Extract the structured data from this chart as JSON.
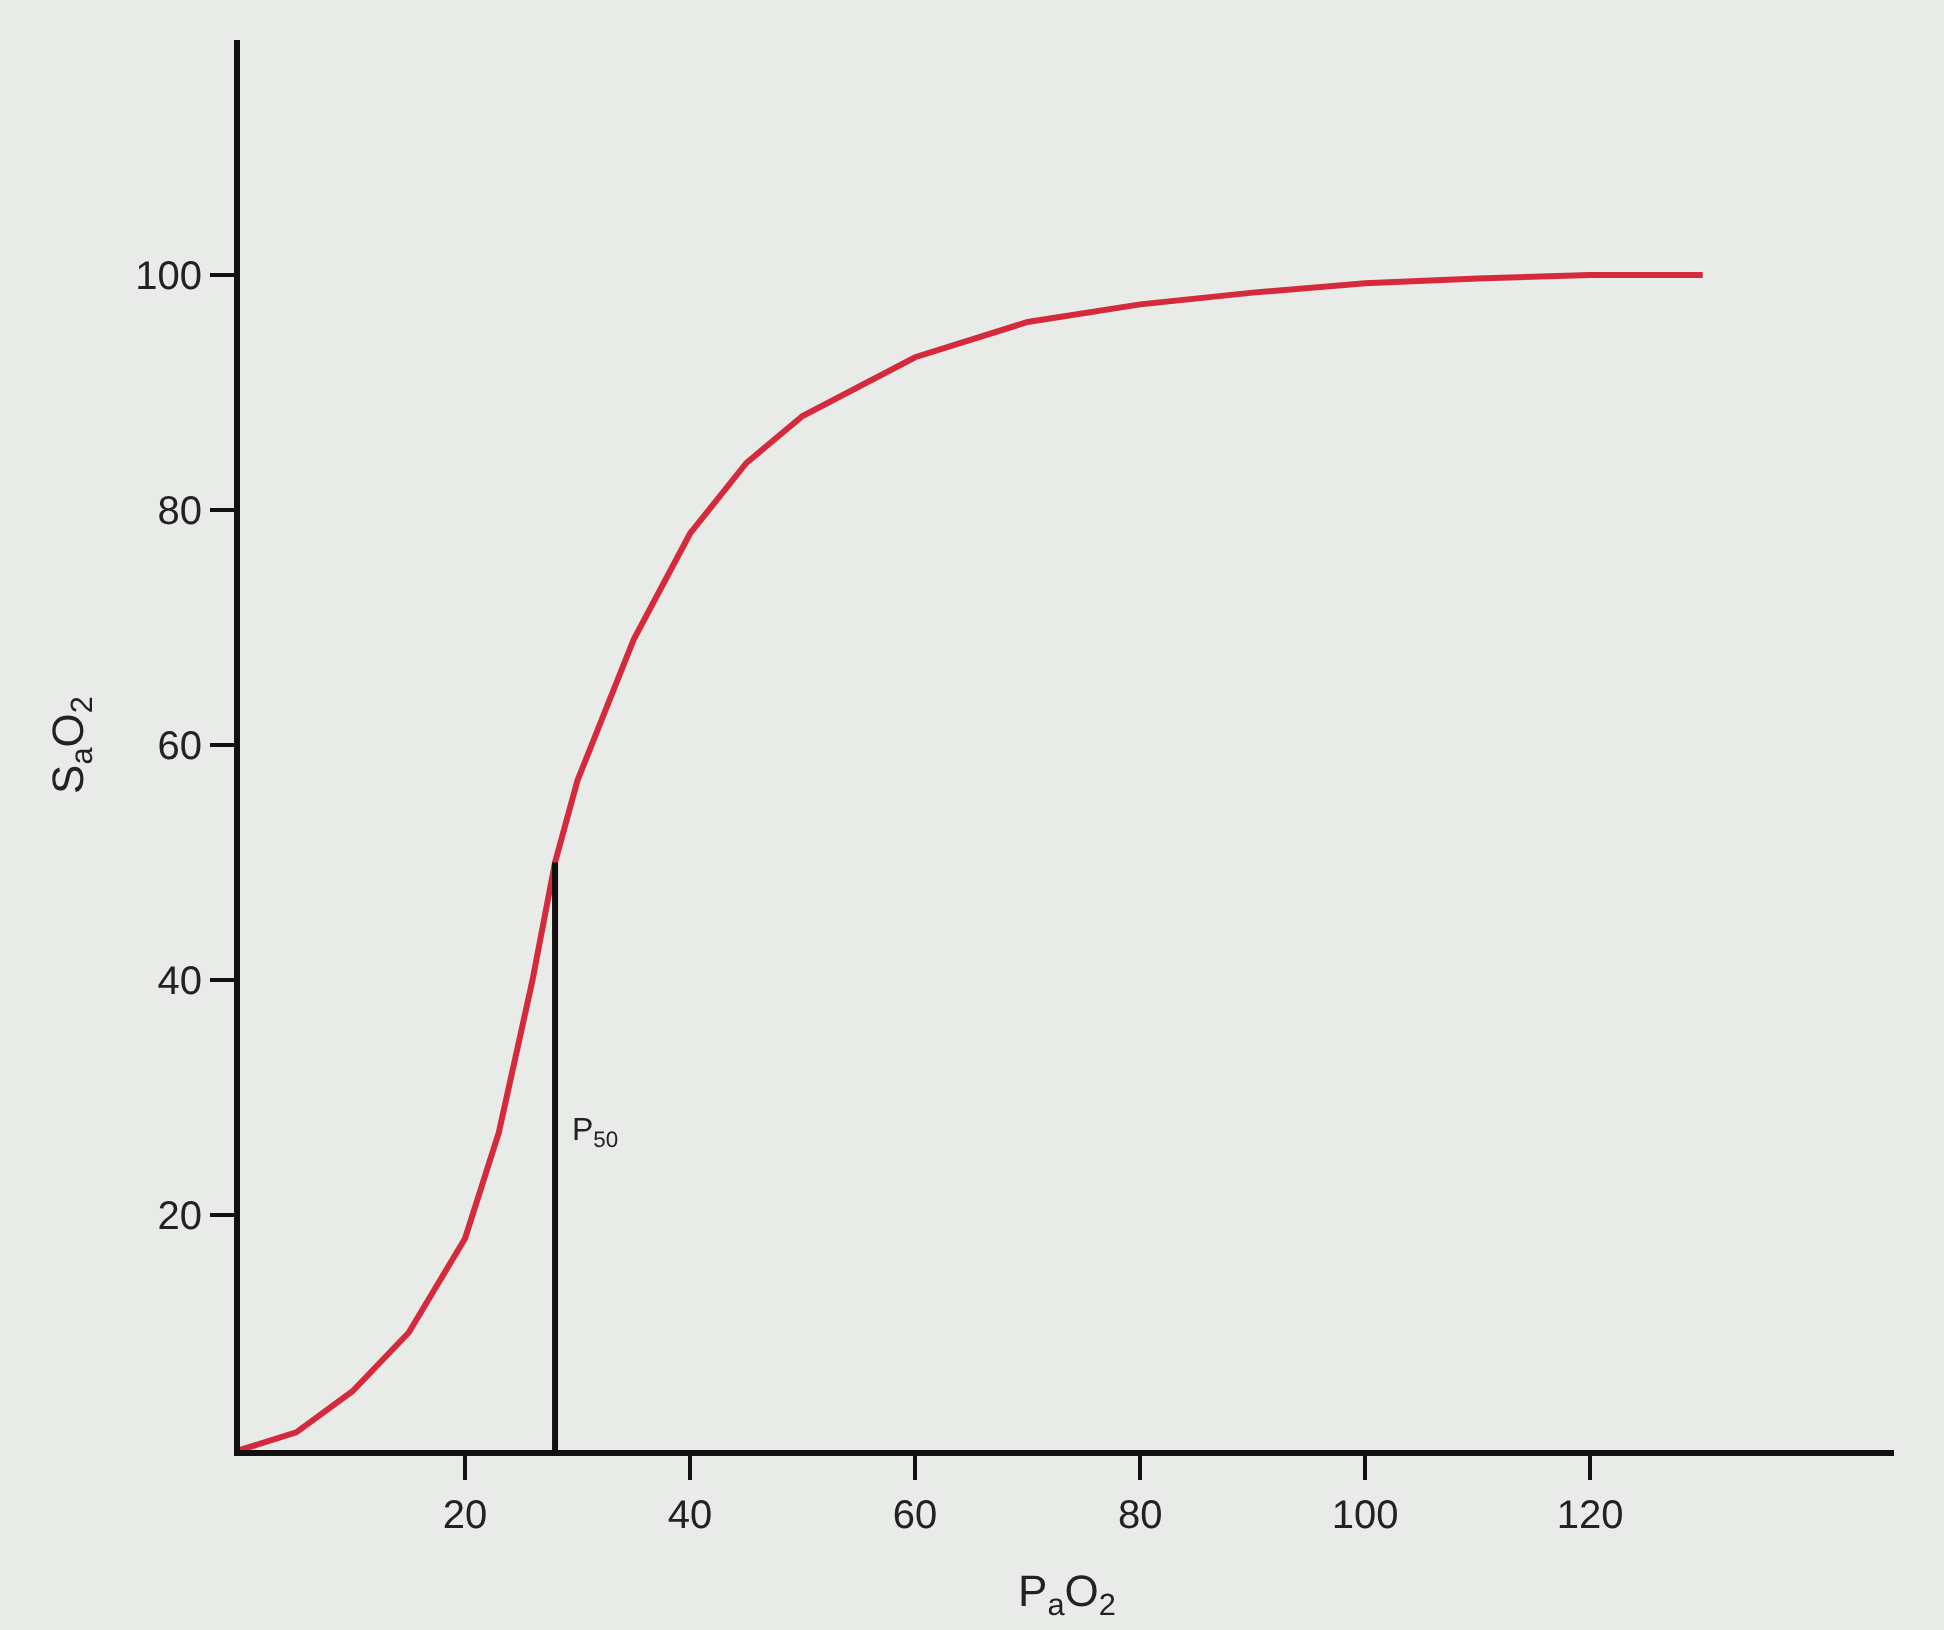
{
  "chart_data": {
    "type": "line",
    "xlabel": "P$_{a}$O$_{2}$",
    "ylabel": "S$_{a}$O$_{2}$",
    "x": [
      0,
      5,
      10,
      15,
      20,
      23,
      26,
      28,
      30,
      35,
      40,
      45,
      50,
      60,
      70,
      80,
      90,
      100,
      110,
      120,
      130
    ],
    "series": [
      {
        "color": "#d42a3c",
        "values": [
          0,
          1.5,
          5,
          10,
          18,
          27,
          40,
          50,
          57,
          69,
          78,
          84,
          88,
          93,
          96,
          97.5,
          98.5,
          99.3,
          99.7,
          100,
          100
        ]
      },
      {
        "type": "line",
        "color": "#111111",
        "x": [
          28,
          28
        ],
        "values": [
          0,
          50
        ]
      }
    ],
    "annotations": [
      {
        "text": "P$_{50}$",
        "x": 28,
        "y": 27
      }
    ],
    "xlim": [
      0,
      147
    ],
    "ylim": [
      0,
      120
    ],
    "xticks": [
      20,
      40,
      60,
      80,
      100,
      120
    ],
    "yticks": [
      20,
      40,
      60,
      80,
      100
    ],
    "marker": "none",
    "line_style": "solid"
  }
}
